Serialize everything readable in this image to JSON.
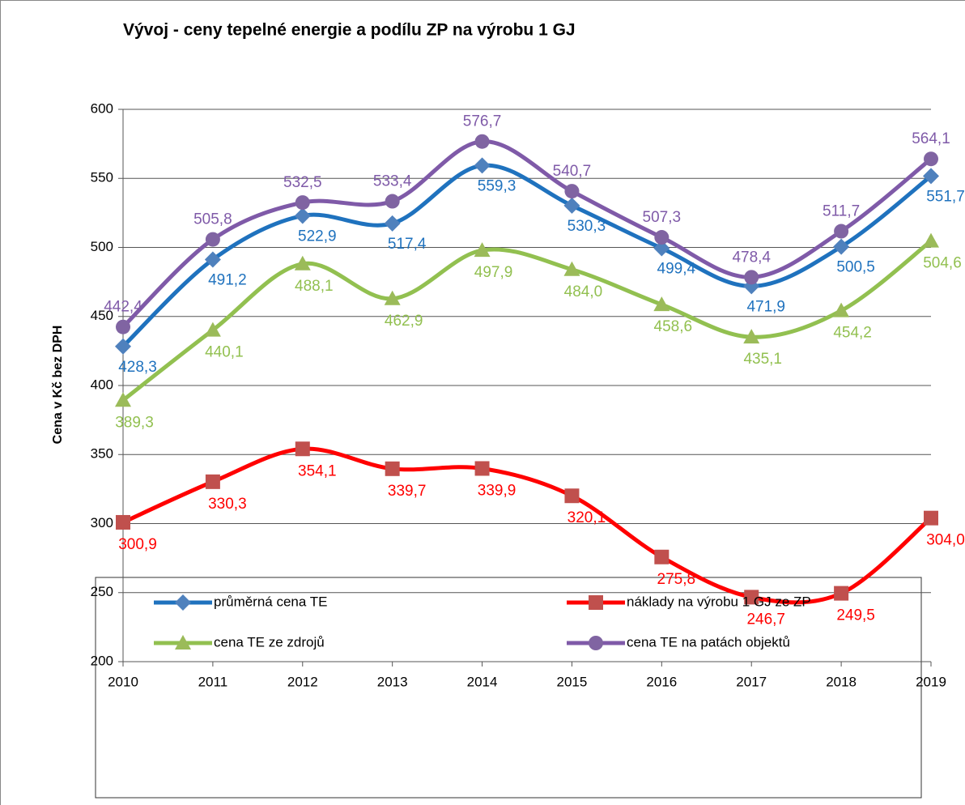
{
  "chart_data": {
    "type": "line",
    "title": "Vývoj - ceny tepelné energie a podílu ZP na výrobu 1 GJ",
    "y_label": "Cena v Kč bez DPH",
    "categories": [
      "2010",
      "2011",
      "2012",
      "2013",
      "2014",
      "2015",
      "2016",
      "2017",
      "2018",
      "2019"
    ],
    "ylim": [
      200,
      600
    ],
    "yticks": [
      200,
      250,
      300,
      350,
      400,
      450,
      500,
      550,
      600
    ],
    "grid": true,
    "smooth": true,
    "legend": "bottom",
    "series": [
      {
        "name": "průměrná cena TE",
        "color": "#1f72be",
        "marker": "diamond",
        "marker_color": "#4f81bd",
        "values": [
          428.3,
          491.2,
          522.9,
          517.4,
          559.3,
          530.3,
          499.4,
          471.9,
          500.5,
          551.7
        ],
        "value_labels": [
          "428,3",
          "491,2",
          "522,9",
          "517,4",
          "559,3",
          "530,3",
          "499,4",
          "471,9",
          "500,5",
          "551,7"
        ]
      },
      {
        "name": "náklady na výrobu 1 GJ ze ZP",
        "color": "#ff0000",
        "marker": "square",
        "marker_color": "#c0504d",
        "values": [
          300.9,
          330.3,
          354.1,
          339.7,
          339.9,
          320.1,
          275.8,
          246.7,
          249.5,
          304.0
        ],
        "value_labels": [
          "300,9",
          "330,3",
          "354,1",
          "339,7",
          "339,9",
          "320,1",
          "275,8",
          "246,7",
          "249,5",
          "304,0"
        ]
      },
      {
        "name": "cena TE ze zdrojů",
        "color": "#92c050",
        "marker": "triangle",
        "marker_color": "#9bbb59",
        "values": [
          389.3,
          440.1,
          488.1,
          462.9,
          497.9,
          484.0,
          458.6,
          435.1,
          454.2,
          504.6
        ],
        "value_labels": [
          "389,3",
          "440,1",
          "488,1",
          "462,9",
          "497,9",
          "484,0",
          "458,6",
          "435,1",
          "454,2",
          "504,6"
        ]
      },
      {
        "name": "cena TE na patách objektů",
        "color": "#7f5aa8",
        "marker": "circle",
        "marker_color": "#8064a2",
        "values": [
          442.4,
          505.8,
          532.5,
          533.4,
          576.7,
          540.7,
          507.3,
          478.4,
          511.7,
          564.1
        ],
        "value_labels": [
          "442,4",
          "505,8",
          "532,5",
          "533,4",
          "576,7",
          "540,7",
          "507,3",
          "478,4",
          "511,7",
          "564,1"
        ]
      }
    ]
  }
}
